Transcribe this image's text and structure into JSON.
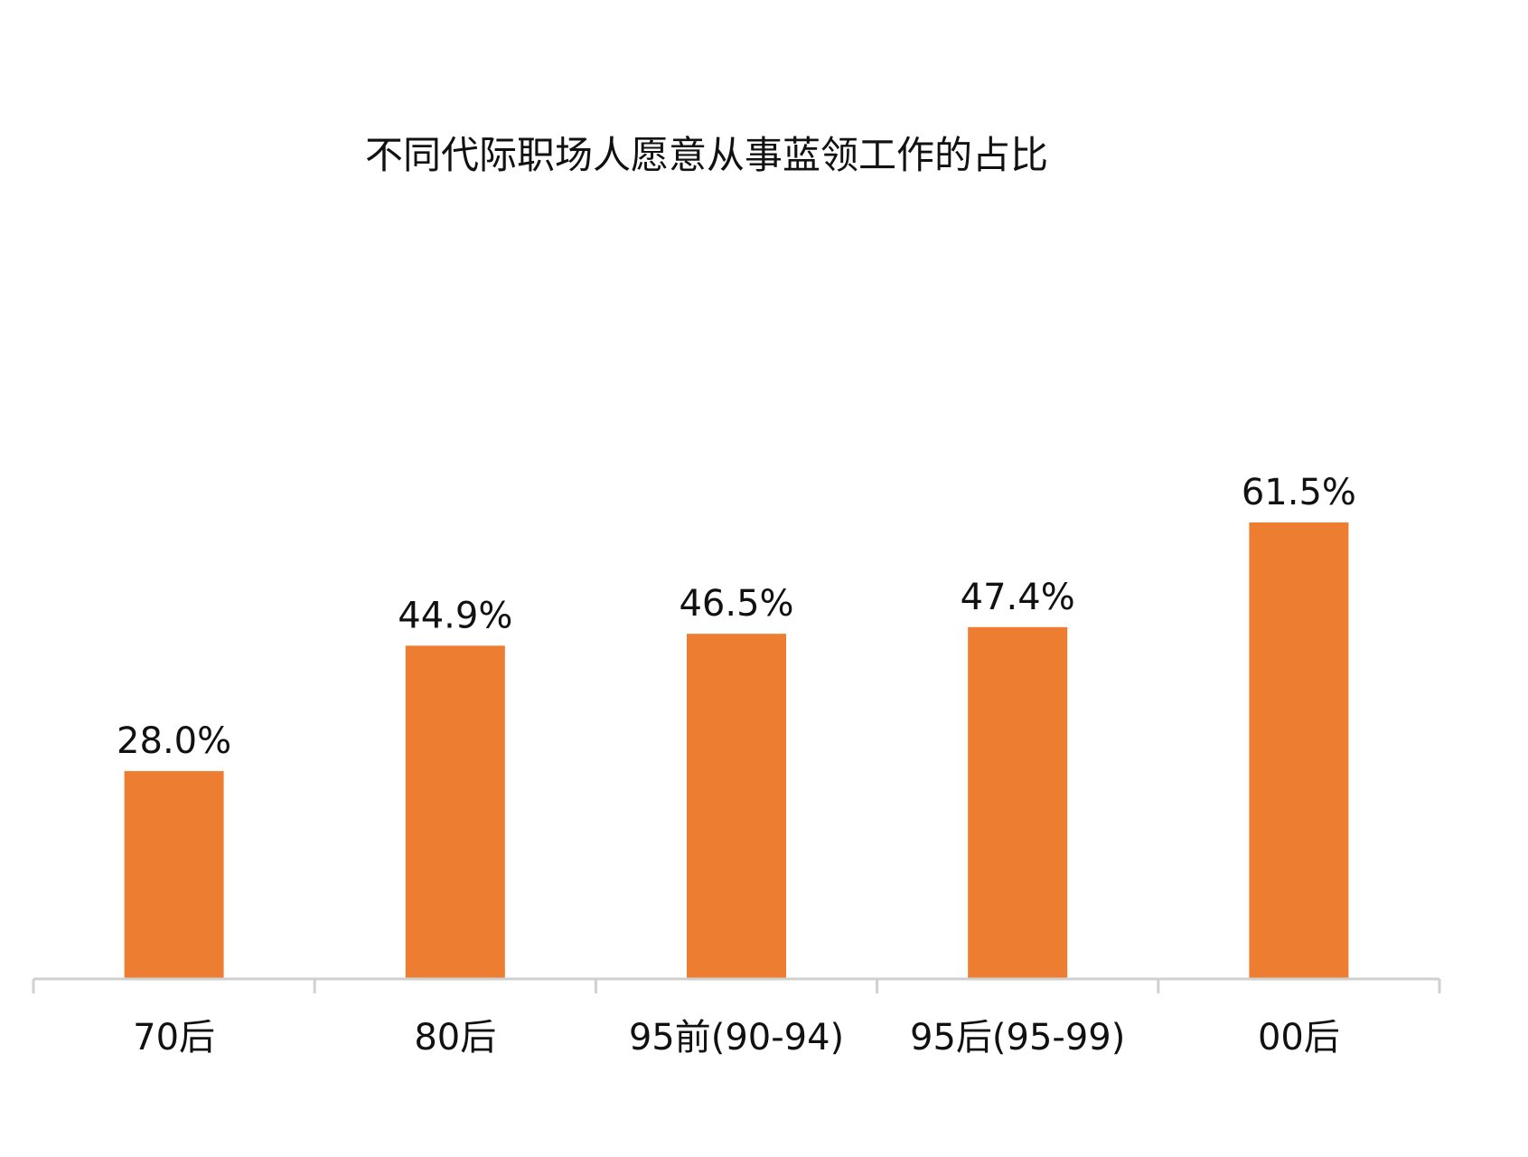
{
  "chart_data": {
    "type": "bar",
    "title": "不同代际职场人愿意从事蓝领工作的占比",
    "categories": [
      "70后",
      "80后",
      "95前(90-94)",
      "95后(95-99)",
      "00后"
    ],
    "values": [
      28.0,
      44.9,
      46.5,
      47.4,
      61.5
    ],
    "value_labels": [
      "28.0%",
      "44.9%",
      "46.5%",
      "47.4%",
      "61.5%"
    ],
    "xlabel": "",
    "ylabel": "",
    "ylim": [
      0,
      61.5
    ],
    "grid": false,
    "legend": "none",
    "colors": {
      "bar": "#ED7D31",
      "axis": "#D0D0D0",
      "text": "#111111"
    }
  }
}
